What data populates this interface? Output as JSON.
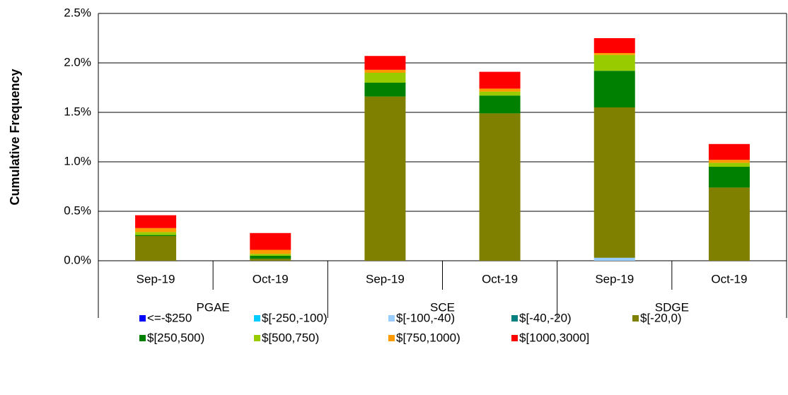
{
  "chart_data": {
    "type": "stacked_bar",
    "y_label": "Cumulative Frequency",
    "categories": [
      "Sep-19",
      "Oct-19",
      "Sep-19",
      "Oct-19",
      "Sep-19",
      "Oct-19"
    ],
    "groups": [
      "PGAE",
      "SCE",
      "SDGE"
    ],
    "ylim": [
      0,
      2.5
    ],
    "yticks": [
      {
        "value": 0,
        "label": "0.0%"
      },
      {
        "value": 0.5,
        "label": "0.5%"
      },
      {
        "value": 1,
        "label": "1.0%"
      },
      {
        "value": 1.5,
        "label": "1.5%"
      },
      {
        "value": 2,
        "label": "2.0%"
      },
      {
        "value": 2.5,
        "label": "2.5%"
      }
    ],
    "grid": true,
    "series": [
      {
        "name": "<=-$250",
        "color": "#0000ff",
        "values": [
          0,
          0,
          0,
          0,
          0,
          0
        ]
      },
      {
        "name": "$[-250,-100)",
        "color": "#00ccff",
        "values": [
          0,
          0,
          0,
          0,
          0,
          0
        ]
      },
      {
        "name": "$[-100,-40)",
        "color": "#99ccff",
        "values": [
          0,
          0,
          0,
          0,
          0.03,
          0
        ]
      },
      {
        "name": "$[-40,-20)",
        "color": "#008080",
        "values": [
          0,
          0,
          0,
          0,
          0,
          0
        ]
      },
      {
        "name": "$[-20,0)",
        "color": "#808000",
        "values": [
          0.25,
          0.02,
          1.66,
          1.49,
          1.52,
          0.74
        ]
      },
      {
        "name": "$[250,500)",
        "color": "#008000",
        "values": [
          0.01,
          0.03,
          0.14,
          0.18,
          0.37,
          0.21
        ]
      },
      {
        "name": "$[500,750)",
        "color": "#99cc00",
        "values": [
          0.03,
          0.02,
          0.1,
          0.04,
          0.16,
          0.04
        ]
      },
      {
        "name": "$[750,1000)",
        "color": "#ff9900",
        "values": [
          0.04,
          0.04,
          0.03,
          0.03,
          0.02,
          0.03
        ]
      },
      {
        "name": "$[1000,3000]",
        "color": "#ff0000",
        "values": [
          0.13,
          0.17,
          0.14,
          0.17,
          0.15,
          0.16
        ]
      }
    ]
  }
}
